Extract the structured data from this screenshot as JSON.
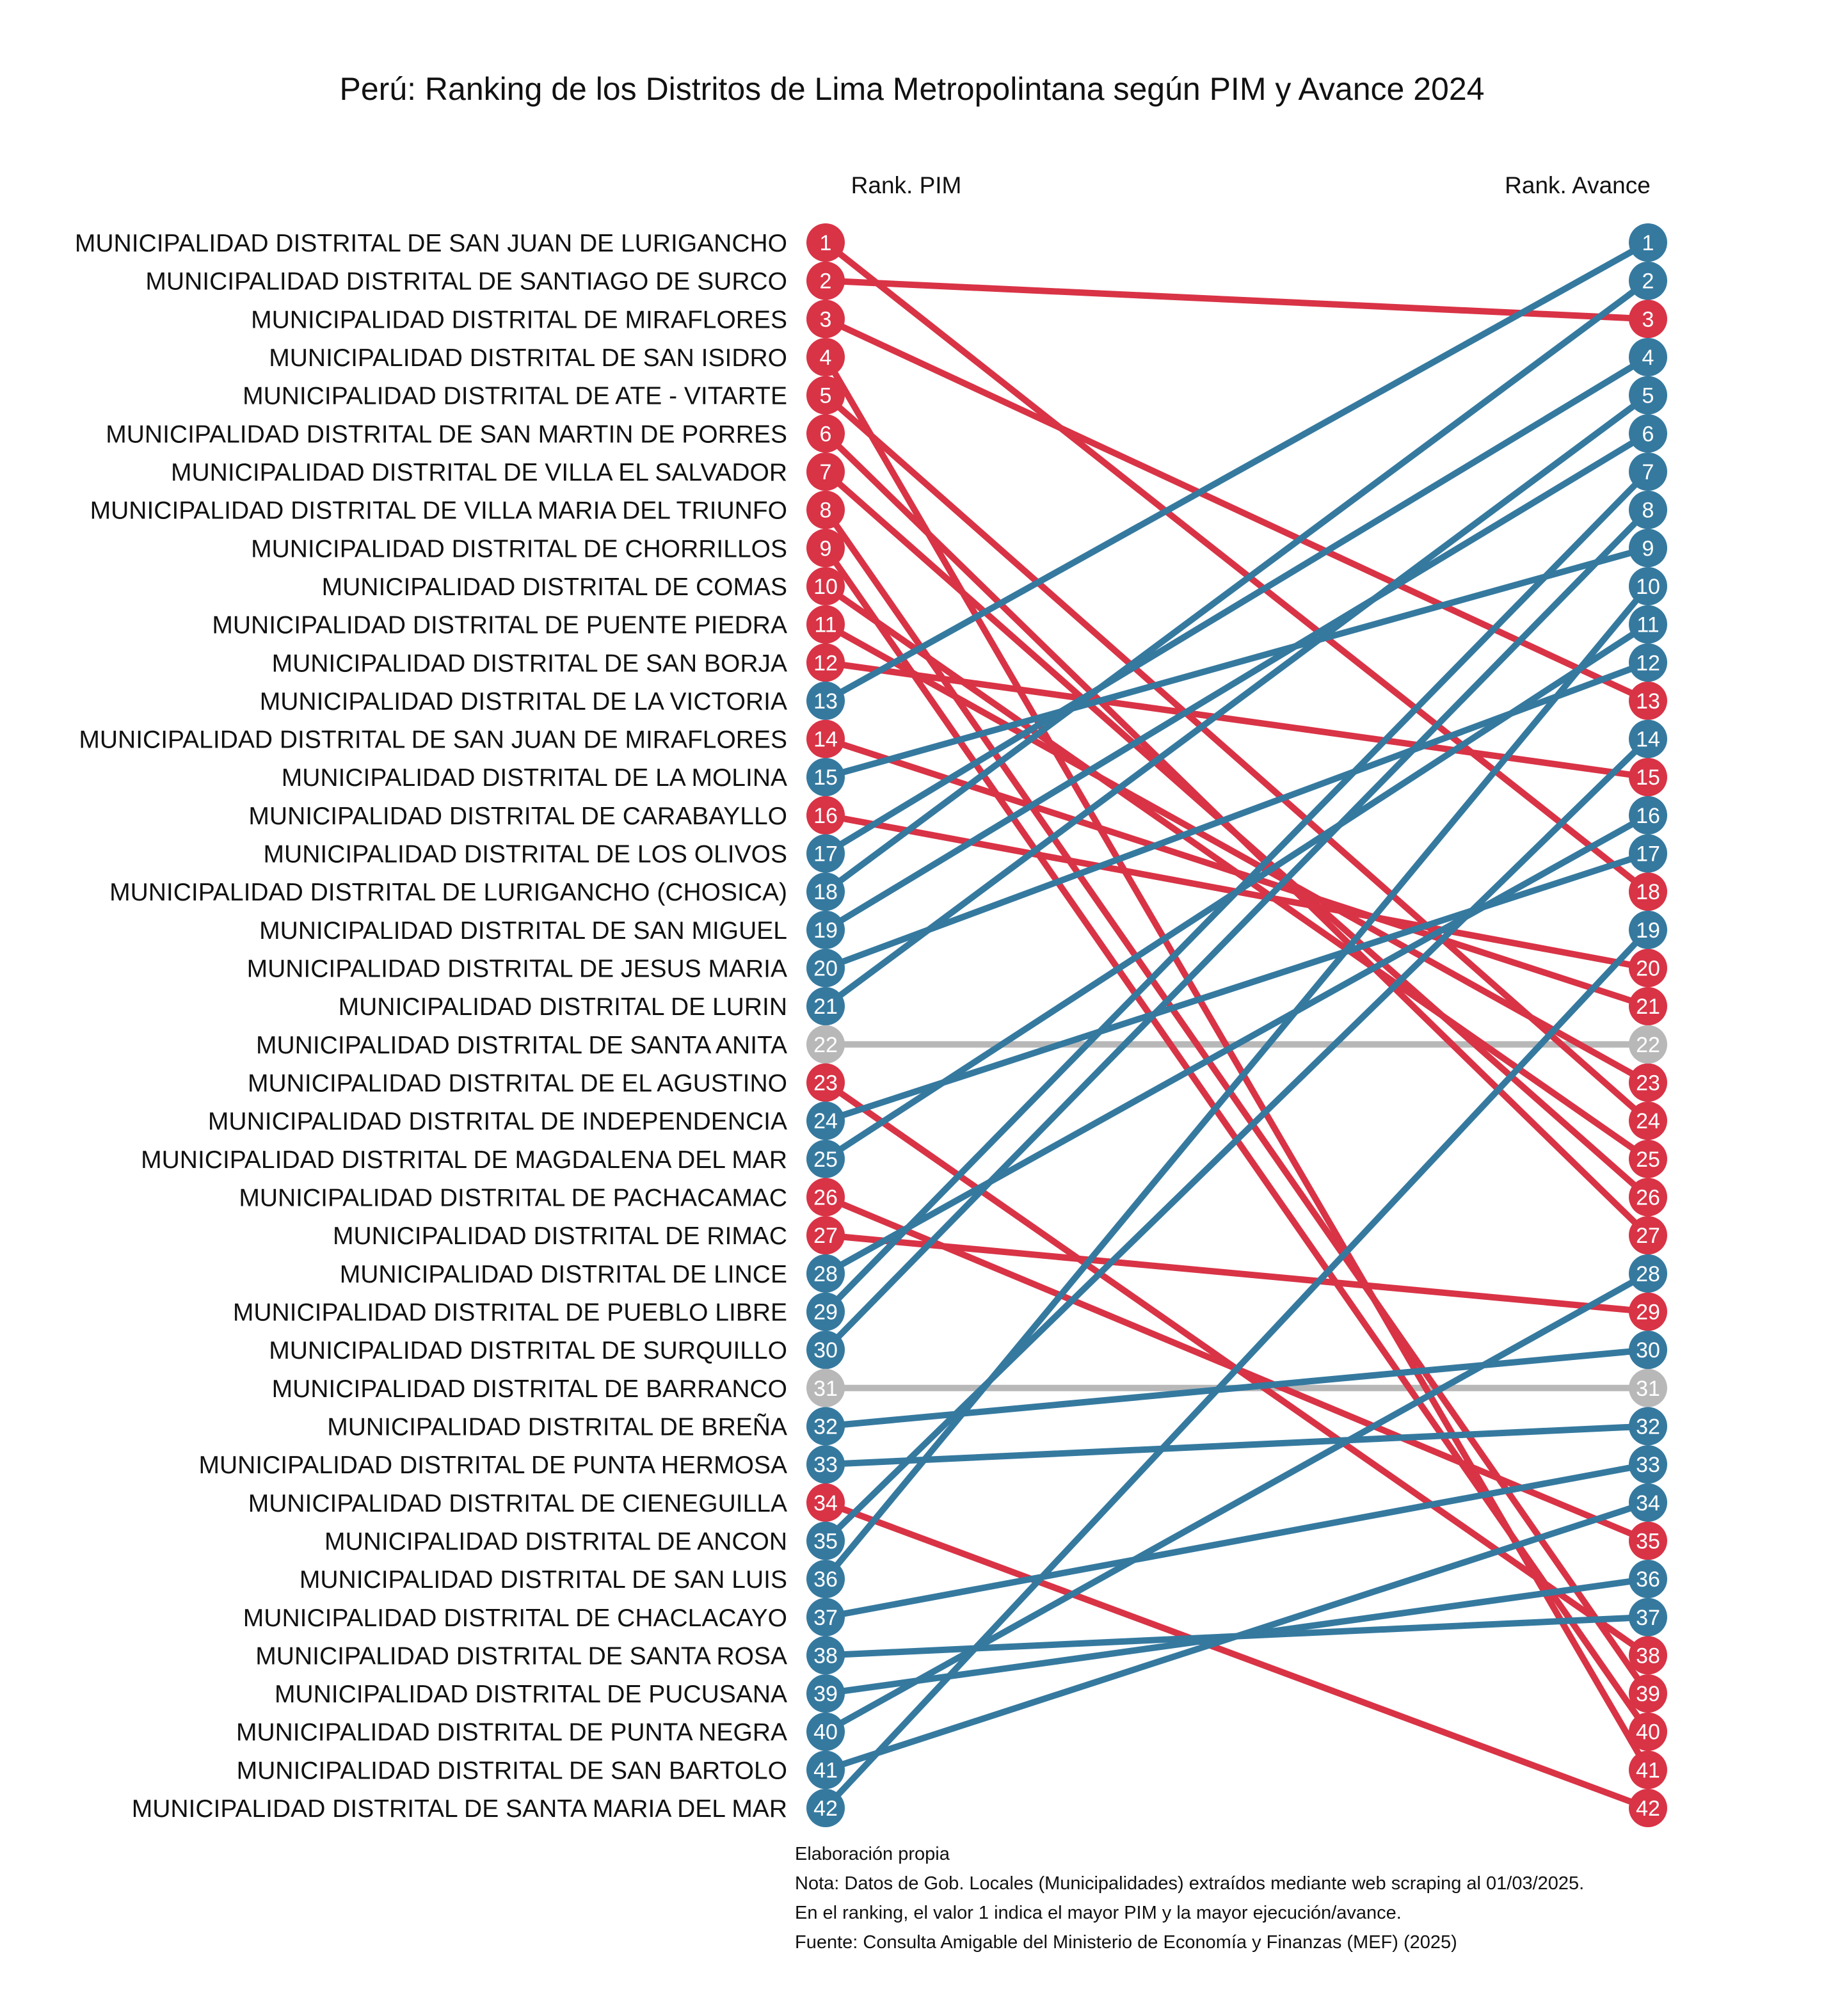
{
  "chart_data": {
    "type": "slope",
    "title": "Perú: Ranking de los Distritos de Lima Metropolintana según PIM y Avance 2024",
    "left_header": "Rank. PIM",
    "right_header": "Rank. Avance",
    "colors": {
      "up": "#35799F",
      "down": "#D93346",
      "same": "#B8B8B8"
    },
    "districts": [
      {
        "name": "MUNICIPALIDAD DISTRITAL DE SAN JUAN DE LURIGANCHO",
        "pim": 1,
        "avance": 18
      },
      {
        "name": "MUNICIPALIDAD DISTRITAL DE SANTIAGO DE SURCO",
        "pim": 2,
        "avance": 3
      },
      {
        "name": "MUNICIPALIDAD DISTRITAL DE MIRAFLORES",
        "pim": 3,
        "avance": 13
      },
      {
        "name": "MUNICIPALIDAD DISTRITAL DE SAN ISIDRO",
        "pim": 4,
        "avance": 41
      },
      {
        "name": "MUNICIPALIDAD DISTRITAL DE ATE - VITARTE",
        "pim": 5,
        "avance": 24
      },
      {
        "name": "MUNICIPALIDAD DISTRITAL DE SAN MARTIN DE PORRES",
        "pim": 6,
        "avance": 27
      },
      {
        "name": "MUNICIPALIDAD DISTRITAL DE VILLA EL SALVADOR",
        "pim": 7,
        "avance": 26
      },
      {
        "name": "MUNICIPALIDAD DISTRITAL DE VILLA MARIA DEL TRIUNFO",
        "pim": 8,
        "avance": 39
      },
      {
        "name": "MUNICIPALIDAD DISTRITAL DE CHORRILLOS",
        "pim": 9,
        "avance": 40
      },
      {
        "name": "MUNICIPALIDAD DISTRITAL DE COMAS",
        "pim": 10,
        "avance": 25
      },
      {
        "name": "MUNICIPALIDAD DISTRITAL DE PUENTE PIEDRA",
        "pim": 11,
        "avance": 23
      },
      {
        "name": "MUNICIPALIDAD DISTRITAL DE SAN BORJA",
        "pim": 12,
        "avance": 15
      },
      {
        "name": "MUNICIPALIDAD DISTRITAL DE LA VICTORIA",
        "pim": 13,
        "avance": 1
      },
      {
        "name": "MUNICIPALIDAD DISTRITAL DE SAN JUAN DE MIRAFLORES",
        "pim": 14,
        "avance": 21
      },
      {
        "name": "MUNICIPALIDAD DISTRITAL DE LA MOLINA",
        "pim": 15,
        "avance": 9
      },
      {
        "name": "MUNICIPALIDAD DISTRITAL DE CARABAYLLO",
        "pim": 16,
        "avance": 20
      },
      {
        "name": "MUNICIPALIDAD DISTRITAL DE LOS OLIVOS",
        "pim": 17,
        "avance": 4
      },
      {
        "name": "MUNICIPALIDAD DISTRITAL DE LURIGANCHO (CHOSICA)",
        "pim": 18,
        "avance": 2
      },
      {
        "name": "MUNICIPALIDAD DISTRITAL DE SAN MIGUEL",
        "pim": 19,
        "avance": 6
      },
      {
        "name": "MUNICIPALIDAD DISTRITAL DE JESUS MARIA",
        "pim": 20,
        "avance": 12
      },
      {
        "name": "MUNICIPALIDAD DISTRITAL DE LURIN",
        "pim": 21,
        "avance": 5
      },
      {
        "name": "MUNICIPALIDAD DISTRITAL DE SANTA ANITA",
        "pim": 22,
        "avance": 22
      },
      {
        "name": "MUNICIPALIDAD DISTRITAL DE EL AGUSTINO",
        "pim": 23,
        "avance": 38
      },
      {
        "name": "MUNICIPALIDAD DISTRITAL DE INDEPENDENCIA",
        "pim": 24,
        "avance": 17
      },
      {
        "name": "MUNICIPALIDAD DISTRITAL DE MAGDALENA DEL MAR",
        "pim": 25,
        "avance": 11
      },
      {
        "name": "MUNICIPALIDAD DISTRITAL DE PACHACAMAC",
        "pim": 26,
        "avance": 35
      },
      {
        "name": "MUNICIPALIDAD DISTRITAL DE RIMAC",
        "pim": 27,
        "avance": 29
      },
      {
        "name": "MUNICIPALIDAD DISTRITAL DE LINCE",
        "pim": 28,
        "avance": 16
      },
      {
        "name": "MUNICIPALIDAD DISTRITAL DE PUEBLO LIBRE",
        "pim": 29,
        "avance": 7
      },
      {
        "name": "MUNICIPALIDAD DISTRITAL DE SURQUILLO",
        "pim": 30,
        "avance": 8
      },
      {
        "name": "MUNICIPALIDAD DISTRITAL DE BARRANCO",
        "pim": 31,
        "avance": 31
      },
      {
        "name": "MUNICIPALIDAD DISTRITAL DE BREÑA",
        "pim": 32,
        "avance": 30
      },
      {
        "name": "MUNICIPALIDAD DISTRITAL DE PUNTA HERMOSA",
        "pim": 33,
        "avance": 32
      },
      {
        "name": "MUNICIPALIDAD DISTRITAL DE CIENEGUILLA",
        "pim": 34,
        "avance": 42
      },
      {
        "name": "MUNICIPALIDAD DISTRITAL DE ANCON",
        "pim": 35,
        "avance": 14
      },
      {
        "name": "MUNICIPALIDAD DISTRITAL DE SAN LUIS",
        "pim": 36,
        "avance": 10
      },
      {
        "name": "MUNICIPALIDAD DISTRITAL DE CHACLACAYO",
        "pim": 37,
        "avance": 33
      },
      {
        "name": "MUNICIPALIDAD DISTRITAL DE SANTA ROSA",
        "pim": 38,
        "avance": 37
      },
      {
        "name": "MUNICIPALIDAD DISTRITAL DE PUCUSANA",
        "pim": 39,
        "avance": 36
      },
      {
        "name": "MUNICIPALIDAD DISTRITAL DE PUNTA NEGRA",
        "pim": 40,
        "avance": 28
      },
      {
        "name": "MUNICIPALIDAD DISTRITAL DE SAN BARTOLO",
        "pim": 41,
        "avance": 34
      },
      {
        "name": "MUNICIPALIDAD DISTRITAL DE SANTA MARIA DEL MAR",
        "pim": 42,
        "avance": 19
      }
    ],
    "notes": [
      "Elaboración propia",
      "Nota: Datos de Gob. Locales (Municipalidades) extraídos mediante web scraping al 01/03/2025.",
      "En el ranking, el valor 1 indica el mayor PIM y la mayor ejecución/avance.",
      "Fuente: Consulta Amigable del Ministerio de Economía y Finanzas (MEF) (2025)"
    ]
  }
}
